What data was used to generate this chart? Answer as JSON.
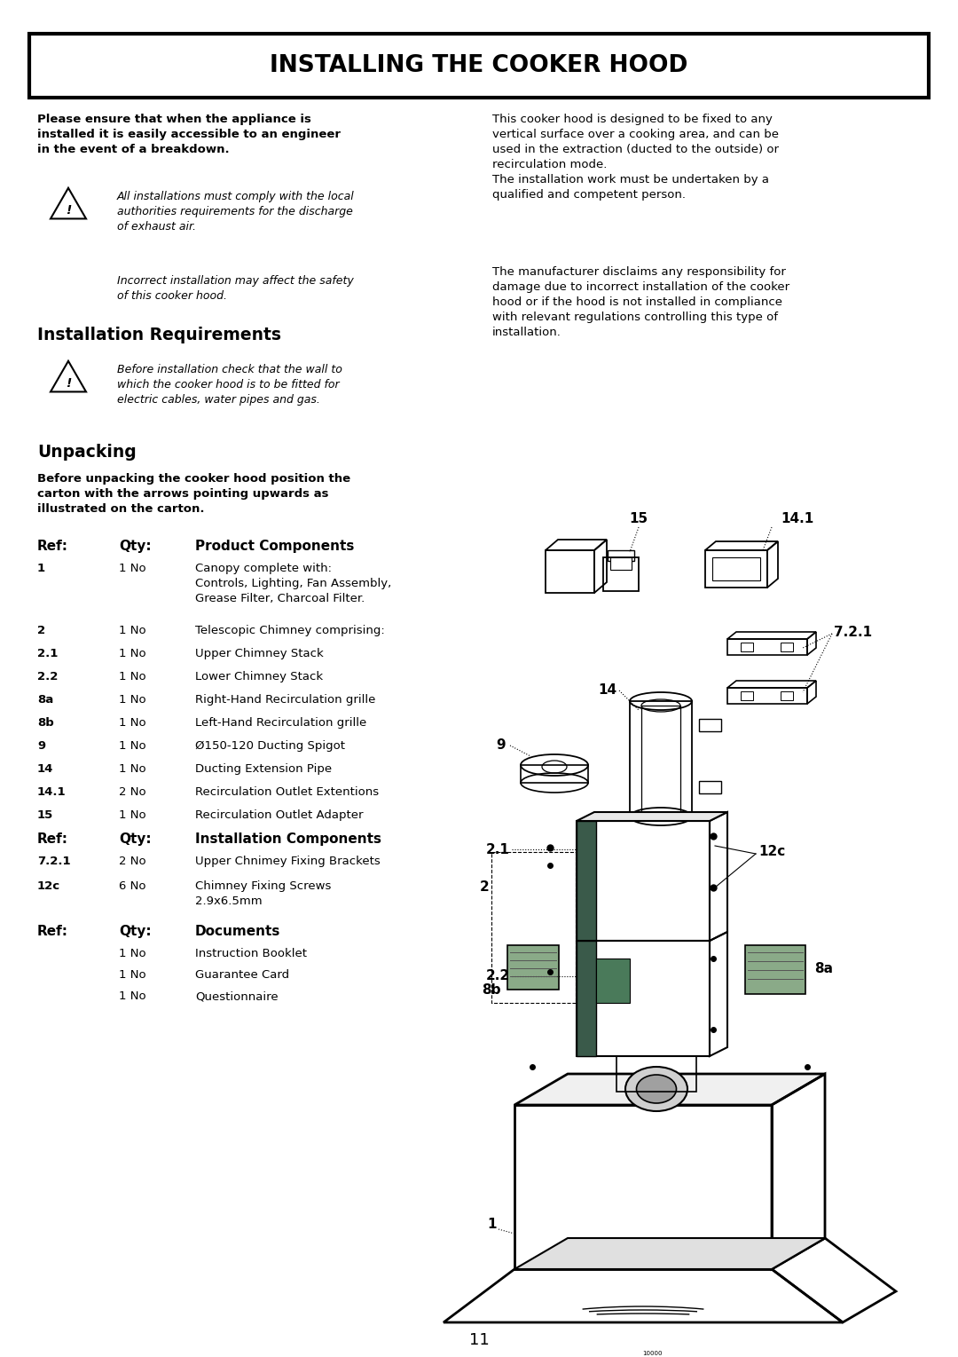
{
  "title": "INSTALLING THE COOKER HOOD",
  "page_number": "11",
  "bg_color": "#ffffff",
  "sections": {
    "header_bold": "Please ensure that when the appliance is\ninstalled it is easily accessible to an engineer\nin the event of a breakdown.",
    "warning1": "All installations must comply with the local\nauthorities requirements for the discharge\nof exhaust air.",
    "warning1b": "Incorrect installation may affect the safety\nof this cooker hood.",
    "right_para1": "This cooker hood is designed to be fixed to any\nvertical surface over a cooking area, and can be\nused in the extraction (ducted to the outside) or\nrecirculation mode.\nThe installation work must be undertaken by a\nqualified and competent person.",
    "right_para2": "The manufacturer disclaims any responsibility for\ndamage due to incorrect installation of the cooker\nhood or if the hood is not installed in compliance\nwith relevant regulations controlling this type of\ninstallation.",
    "section_install_req": "Installation Requirements",
    "warning2": "Before installation check that the wall to\nwhich the cooker hood is to be fitted for\nelectric cables, water pipes and gas.",
    "section_unpacking": "Unpacking",
    "unpacking_bold": "Before unpacking the cooker hood position the\ncarton with the arrows pointing upwards as\nillustrated on the carton.",
    "table_header": [
      "Ref:",
      "Qty:",
      "Product Components"
    ],
    "table_rows": [
      [
        "1",
        "1 No",
        "Canopy complete with:\nControls, Lighting, Fan Assembly,\nGrease Filter, Charcoal Filter."
      ],
      [
        "2",
        "1 No",
        "Telescopic Chimney comprising:"
      ],
      [
        "2.1",
        "1 No",
        "Upper Chimney Stack"
      ],
      [
        "2.2",
        "1 No",
        "Lower Chimney Stack"
      ],
      [
        "8a",
        "1 No",
        "Right-Hand Recirculation grille"
      ],
      [
        "8b",
        "1 No",
        "Left-Hand Recirculation grille"
      ],
      [
        "9",
        "1 No",
        "Ø150-120 Ducting Spigot"
      ],
      [
        "14",
        "1 No",
        "Ducting Extension Pipe"
      ],
      [
        "14.1",
        "2 No",
        "Recirculation Outlet Extentions"
      ],
      [
        "15",
        "1 No",
        "Recirculation Outlet Adapter"
      ]
    ],
    "table_header2": [
      "Ref:",
      "Qty:",
      "Installation Components"
    ],
    "table_rows2": [
      [
        "7.2.1",
        "2 No",
        "Upper Chnimey Fixing Brackets"
      ],
      [
        "12c",
        "6 No",
        "Chimney Fixing Screws\n2.9x6.5mm"
      ]
    ],
    "table_header3": [
      "Ref:",
      "Qty:",
      "Documents"
    ],
    "table_rows3": [
      [
        "",
        "1 No",
        "Instruction Booklet"
      ],
      [
        "",
        "1 No",
        "Guarantee Card"
      ],
      [
        "",
        "1 No",
        "Questionnaire"
      ]
    ]
  }
}
